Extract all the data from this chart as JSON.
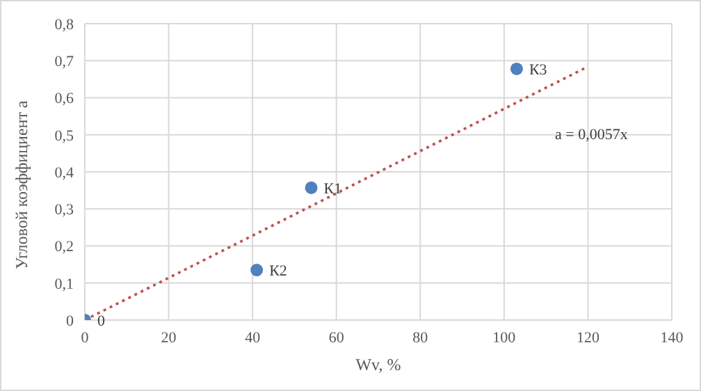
{
  "chart_data": {
    "type": "scatter",
    "xlabel": "Wv, %",
    "ylabel": "Угловой коэффициент  a",
    "xlim": [
      0,
      140
    ],
    "xticks": [
      0,
      20,
      40,
      60,
      80,
      100,
      120,
      140
    ],
    "ylim": [
      0,
      0.8
    ],
    "yticks": [
      0,
      {
        "value": 0.1,
        "label": "0,1"
      },
      {
        "value": 0.2,
        "label": "0,2"
      },
      {
        "value": 0.3,
        "label": "0,3"
      },
      {
        "value": 0.4,
        "label": "0,4"
      },
      {
        "value": 0.5,
        "label": "0,5"
      },
      {
        "value": 0.6,
        "label": "0,6"
      },
      {
        "value": 0.7,
        "label": "0,7"
      },
      {
        "value": 0.8,
        "label": "0,8"
      }
    ],
    "grid": true,
    "marker": "circle",
    "annotations": [
      "a = 0,0057x"
    ],
    "series": [
      {
        "color": "#4f81bd",
        "x": [
          0,
          54,
          41,
          103
        ],
        "values": [
          0,
          0.357,
          0.135,
          0.678
        ],
        "value_labels": [
          "0",
          "К1",
          "К2",
          "К3"
        ]
      },
      {
        "type": "line",
        "color": "#c0504d",
        "x": [
          0,
          120
        ],
        "values": [
          0,
          0.684
        ],
        "line_style": "dotted",
        "marker": "none"
      }
    ]
  }
}
